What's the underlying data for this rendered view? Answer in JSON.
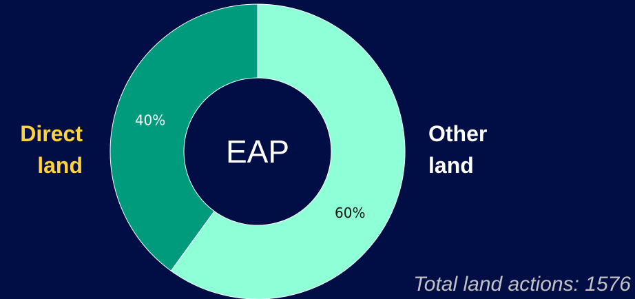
{
  "chart_data": {
    "type": "pie",
    "variant": "donut",
    "center_label": "EAP",
    "slices": [
      {
        "name": "Direct land",
        "value": 40,
        "value_label": "40%",
        "color": "#009b7d",
        "label_color": "#ffffff"
      },
      {
        "name": "Other land",
        "value": 60,
        "value_label": "60%",
        "color": "#8effd6",
        "label_color": "#111111"
      }
    ],
    "category_labels": {
      "left": {
        "lines": [
          "Direct",
          "land"
        ],
        "color": "#ffd23f"
      },
      "right": {
        "lines": [
          "Other",
          "land"
        ],
        "color": "#ffffff"
      }
    },
    "footnote": "Total land actions: 1576"
  },
  "colors": {
    "background": "#000e45",
    "separator": "#ffffff"
  }
}
